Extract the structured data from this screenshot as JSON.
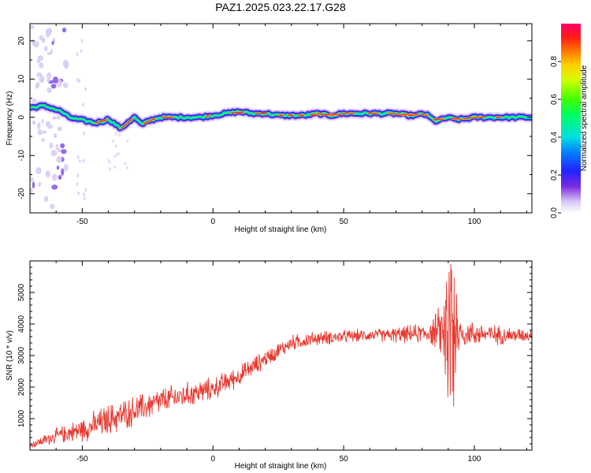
{
  "title": "PAZ1.2025.023.22.17.G28",
  "chart_data": [
    {
      "type": "heatmap",
      "name": "spectrogram",
      "xlabel": "Height of straight line (km)",
      "ylabel": "Frequency (Hz)",
      "xlim": [
        -70,
        122
      ],
      "ylim": [
        -25,
        24.5
      ],
      "xticks": [
        -50,
        0,
        50,
        100
      ],
      "yticks": [
        -20,
        -10,
        0,
        10,
        20
      ],
      "ridge_x": [
        -70,
        -65,
        -62,
        -58,
        -55,
        -52,
        -48,
        -45,
        -42,
        -40,
        -37,
        -35,
        -33,
        -30,
        -27,
        -25,
        -20,
        -15,
        -10,
        -5,
        0,
        5,
        10,
        15,
        20,
        25,
        30,
        35,
        40,
        45,
        50,
        55,
        60,
        65,
        70,
        75,
        78,
        80,
        82,
        85,
        88,
        90,
        92,
        95,
        100,
        105,
        110,
        115,
        122
      ],
      "ridge_freq": [
        2.5,
        3,
        2.5,
        1.5,
        0,
        -0.5,
        -1,
        -1.5,
        -1,
        -0.5,
        -2,
        -3,
        -1.5,
        0,
        -2,
        -1,
        0,
        0,
        0,
        0,
        0.5,
        1,
        1.5,
        1,
        1,
        0.5,
        0.5,
        0.5,
        1,
        0.5,
        1,
        1,
        1,
        1,
        1,
        0.5,
        0.5,
        1,
        0.5,
        -1,
        -0.5,
        0,
        -0.5,
        -0.5,
        0,
        0,
        0,
        0,
        0
      ]
    },
    {
      "type": "line",
      "name": "snr",
      "xlabel": "Height of straight line (km)",
      "ylabel": "SNR (10 * v/v)",
      "xlim": [
        -70,
        122
      ],
      "ylim": [
        0,
        6000
      ],
      "xticks": [
        -50,
        0,
        50,
        100
      ],
      "yticks": [
        1000,
        2000,
        3000,
        4000,
        5000
      ],
      "color": "#e8372e",
      "trend_x": [
        -70,
        -60,
        -50,
        -40,
        -30,
        -20,
        -10,
        0,
        10,
        20,
        30,
        40,
        50,
        60,
        70,
        80,
        85,
        88,
        90,
        92,
        95,
        100,
        110,
        122
      ],
      "trend_y": [
        150,
        450,
        650,
        950,
        1250,
        1550,
        1750,
        1950,
        2350,
        2900,
        3400,
        3550,
        3600,
        3650,
        3650,
        3700,
        3750,
        3800,
        3700,
        3700,
        3700,
        3700,
        3650,
        3650
      ],
      "noise_x": [
        -70,
        -40,
        0,
        25,
        60,
        83,
        87,
        91,
        95,
        122
      ],
      "noise_amp": [
        100,
        500,
        350,
        250,
        180,
        320,
        800,
        1700,
        420,
        180
      ],
      "peak": {
        "x": 91,
        "y": 5900
      },
      "trough": {
        "x": 92,
        "y": 1400
      }
    }
  ],
  "colorbar": {
    "label": "Normalized spectral amplitude",
    "ticks": [
      "0.0",
      "0.2",
      "0.4",
      "0.6",
      "0.8"
    ],
    "tick_values": [
      0,
      0.2,
      0.4,
      0.6,
      0.8
    ],
    "range": [
      0,
      1
    ]
  }
}
